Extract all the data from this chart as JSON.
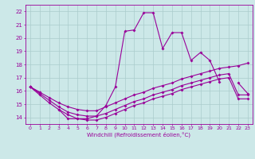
{
  "xlabel": "Windchill (Refroidissement éolien,°C)",
  "background_color": "#cce8e8",
  "grid_color": "#aacccc",
  "line_color": "#990099",
  "hours": [
    0,
    1,
    2,
    3,
    4,
    5,
    6,
    7,
    8,
    9,
    10,
    11,
    12,
    13,
    14,
    15,
    16,
    17,
    18,
    19,
    20,
    21,
    22,
    23
  ],
  "spiky": [
    16.3,
    15.9,
    null,
    14.6,
    13.9,
    13.9,
    13.9,
    14.1,
    14.9,
    16.3,
    20.5,
    20.6,
    21.9,
    21.9,
    19.2,
    20.4,
    20.4,
    18.3,
    18.9,
    18.3,
    16.7,
    null,
    16.6,
    15.8
  ],
  "line1": [
    16.3,
    15.9,
    15.5,
    15.1,
    14.8,
    14.6,
    14.5,
    14.5,
    14.8,
    15.1,
    15.4,
    15.7,
    15.9,
    16.2,
    16.4,
    16.6,
    16.9,
    17.1,
    17.3,
    17.5,
    17.7,
    17.8,
    17.9,
    18.1
  ],
  "line2": [
    16.3,
    15.8,
    15.3,
    14.8,
    14.4,
    14.2,
    14.1,
    14.1,
    14.3,
    14.6,
    14.9,
    15.2,
    15.4,
    15.7,
    15.9,
    16.1,
    16.4,
    16.6,
    16.8,
    17.0,
    17.2,
    17.3,
    15.7,
    15.7
  ],
  "line3": [
    16.3,
    15.7,
    15.1,
    14.6,
    14.2,
    13.9,
    13.8,
    13.8,
    14.0,
    14.3,
    14.6,
    14.9,
    15.1,
    15.4,
    15.6,
    15.8,
    16.1,
    16.3,
    16.5,
    16.7,
    16.9,
    17.0,
    15.4,
    15.4
  ],
  "yticks": [
    14,
    15,
    16,
    17,
    18,
    19,
    20,
    21,
    22
  ],
  "ylim": [
    13.5,
    22.5
  ],
  "xlim": [
    -0.5,
    23.5
  ]
}
